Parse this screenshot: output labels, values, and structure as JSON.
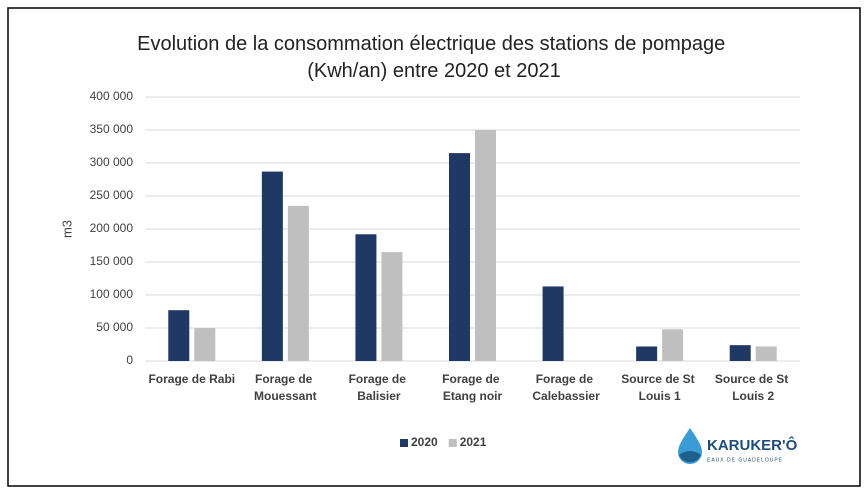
{
  "chart_data": {
    "type": "bar",
    "title": "Evolution de la consommation électrique des stations de pompage (Kwh/an) entre 2020 et 2021",
    "y_label": "m3",
    "categories": [
      "Forage de Rabi",
      "Forage de Mouessant",
      "Forage de Balisier",
      "Forage de Etang noir",
      "Forage de Calebassier",
      "Source de St Louis 1",
      "Source de St Louis 2"
    ],
    "series": [
      {
        "name": "2020",
        "color": "#203864",
        "values": [
          77000,
          287000,
          192000,
          315000,
          113000,
          22000,
          24000
        ]
      },
      {
        "name": "2021",
        "color": "#bfbfbf",
        "values": [
          50000,
          235000,
          165000,
          350000,
          0,
          48000,
          22000
        ]
      }
    ],
    "ylim": [
      0,
      400000
    ],
    "yticks": [
      0,
      {
        "value": 50000,
        "label": "50 000"
      },
      {
        "value": 100000,
        "label": "100 000"
      },
      {
        "value": 150000,
        "label": "150 000"
      },
      {
        "value": 200000,
        "label": "200 000"
      },
      {
        "value": 250000,
        "label": "250 000"
      },
      {
        "value": 300000,
        "label": "300 000"
      },
      {
        "value": 350000,
        "label": "350 000"
      },
      {
        "value": 400000,
        "label": "400 000"
      }
    ],
    "grid": true,
    "legend": "bottom",
    "logo": {
      "name": "KARUKER'Ô",
      "tagline": "EAUX DE GUADELOUPE"
    }
  }
}
